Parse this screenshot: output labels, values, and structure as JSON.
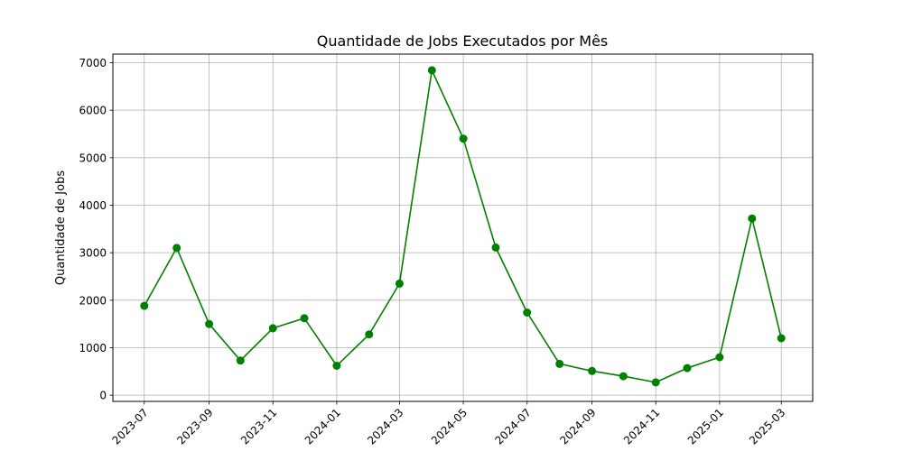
{
  "chart_data": {
    "type": "line",
    "title": "Quantidade de Jobs Executados por Mês",
    "xlabel": "",
    "ylabel": "Quantidade de Jobs",
    "x": [
      "2023-07",
      "2023-08",
      "2023-09",
      "2023-10",
      "2023-11",
      "2023-12",
      "2024-01",
      "2024-02",
      "2024-03",
      "2024-04",
      "2024-05",
      "2024-06",
      "2024-07",
      "2024-08",
      "2024-09",
      "2024-10",
      "2024-11",
      "2024-12",
      "2025-01",
      "2025-02",
      "2025-03"
    ],
    "series": [
      {
        "values": [
          1880,
          3100,
          1500,
          730,
          1410,
          1620,
          620,
          1280,
          2350,
          6840,
          5400,
          3110,
          1740,
          660,
          510,
          400,
          270,
          570,
          800,
          3720,
          1200
        ],
        "color": "#008000",
        "marker": "circle"
      }
    ],
    "xticks": [
      "2023-07",
      "2023-09",
      "2023-11",
      "2024-01",
      "2024-03",
      "2024-05",
      "2024-07",
      "2024-09",
      "2024-11",
      "2025-01",
      "2025-03"
    ],
    "yticks": [
      "0",
      "1000",
      "2000",
      "3000",
      "4000",
      "5000",
      "6000",
      "7000"
    ],
    "ylim": [
      -130,
      7180
    ],
    "xlim": [
      "2023-06-01",
      "2025-03-31"
    ],
    "grid": true,
    "legend": "none"
  }
}
